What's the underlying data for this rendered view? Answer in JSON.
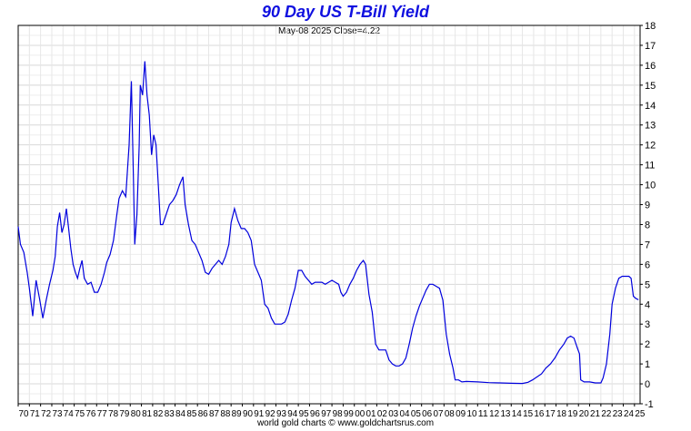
{
  "chart_data": {
    "type": "line",
    "title": "90 Day US T-Bill Yield",
    "subtitle": "May-08  2025   Close=4.22",
    "footer": "world gold charts © www.goldchartsrus.com",
    "ylim": [
      -1,
      18
    ],
    "y_ticks": [
      "-1",
      "0",
      "1",
      "2",
      "3",
      "4",
      "5",
      "6",
      "7",
      "8",
      "9",
      "10",
      "11",
      "12",
      "13",
      "14",
      "15",
      "16",
      "17",
      "18"
    ],
    "x_ticks": [
      "70",
      "71",
      "72",
      "73",
      "74",
      "75",
      "76",
      "77",
      "78",
      "79",
      "80",
      "81",
      "82",
      "83",
      "84",
      "85",
      "86",
      "87",
      "88",
      "89",
      "90",
      "91",
      "92",
      "93",
      "94",
      "95",
      "96",
      "97",
      "98",
      "99",
      "00",
      "01",
      "02",
      "03",
      "04",
      "05",
      "06",
      "07",
      "08",
      "09",
      "10",
      "11",
      "12",
      "13",
      "14",
      "15",
      "16",
      "17",
      "18",
      "19",
      "20",
      "21",
      "22",
      "23",
      "24",
      "25"
    ],
    "grid": true,
    "line_color": "#0000dd",
    "series": [
      {
        "x": [
          1970.0,
          1970.2,
          1970.5,
          1970.8,
          1971.0,
          1971.3,
          1971.6,
          1971.9,
          1972.2,
          1972.5,
          1972.8,
          1973.1,
          1973.3,
          1973.5,
          1973.7,
          1973.9,
          1974.1,
          1974.3,
          1974.5,
          1974.7,
          1974.9,
          1975.1,
          1975.3,
          1975.5,
          1975.7,
          1975.9,
          1976.2,
          1976.5,
          1976.8,
          1977.1,
          1977.4,
          1977.7,
          1977.9,
          1978.2,
          1978.5,
          1978.8,
          1979.0,
          1979.3,
          1979.6,
          1979.9,
          1980.1,
          1980.3,
          1980.4,
          1980.6,
          1980.8,
          1980.9,
          1981.1,
          1981.3,
          1981.5,
          1981.7,
          1981.9,
          1982.1,
          1982.3,
          1982.5,
          1982.7,
          1982.9,
          1983.2,
          1983.5,
          1983.8,
          1984.1,
          1984.4,
          1984.7,
          1984.9,
          1985.2,
          1985.5,
          1985.8,
          1986.1,
          1986.4,
          1986.7,
          1987.0,
          1987.3,
          1987.6,
          1987.9,
          1988.2,
          1988.5,
          1988.8,
          1989.0,
          1989.3,
          1989.6,
          1989.9,
          1990.2,
          1990.5,
          1990.8,
          1991.1,
          1991.4,
          1991.7,
          1992.0,
          1992.3,
          1992.6,
          1992.9,
          1993.2,
          1993.5,
          1993.8,
          1994.1,
          1994.4,
          1994.7,
          1995.0,
          1995.3,
          1995.6,
          1995.9,
          1996.2,
          1996.5,
          1996.8,
          1997.1,
          1997.4,
          1997.7,
          1998.0,
          1998.3,
          1998.6,
          1998.8,
          1999.0,
          1999.3,
          1999.6,
          1999.9,
          2000.2,
          2000.5,
          2000.8,
          2001.0,
          2001.3,
          2001.6,
          2001.9,
          2002.2,
          2002.5,
          2002.8,
          2003.1,
          2003.4,
          2003.7,
          2004.0,
          2004.3,
          2004.6,
          2004.9,
          2005.2,
          2005.5,
          2005.8,
          2006.1,
          2006.4,
          2006.7,
          2007.0,
          2007.3,
          2007.6,
          2007.9,
          2008.2,
          2008.5,
          2008.8,
          2009.0,
          2009.3,
          2009.6,
          2010.0,
          2011.0,
          2012.0,
          2013.0,
          2014.0,
          2015.0,
          2015.5,
          2015.9,
          2016.3,
          2016.7,
          2017.1,
          2017.5,
          2017.9,
          2018.3,
          2018.7,
          2019.0,
          2019.3,
          2019.6,
          2019.9,
          2020.1,
          2020.2,
          2020.5,
          2021.0,
          2021.5,
          2022.0,
          2022.2,
          2022.5,
          2022.8,
          2023.0,
          2023.3,
          2023.6,
          2023.9,
          2024.2,
          2024.5,
          2024.7,
          2024.9,
          2025.1,
          2025.35
        ],
        "y": [
          7.9,
          7.0,
          6.6,
          5.6,
          4.8,
          3.4,
          5.2,
          4.3,
          3.3,
          4.2,
          5.0,
          5.7,
          6.4,
          7.9,
          8.6,
          7.6,
          8.0,
          8.8,
          7.8,
          6.8,
          6.0,
          5.6,
          5.3,
          5.8,
          6.2,
          5.3,
          5.0,
          5.1,
          4.6,
          4.6,
          5.0,
          5.6,
          6.1,
          6.5,
          7.2,
          8.5,
          9.3,
          9.7,
          9.4,
          12.0,
          15.2,
          10.0,
          7.0,
          8.5,
          12.0,
          15.0,
          14.5,
          16.2,
          14.5,
          13.5,
          11.5,
          12.5,
          12.0,
          10.0,
          8.0,
          8.0,
          8.5,
          9.0,
          9.2,
          9.5,
          10.0,
          10.4,
          9.0,
          8.0,
          7.2,
          7.0,
          6.6,
          6.2,
          5.6,
          5.5,
          5.8,
          6.0,
          6.2,
          6.0,
          6.4,
          7.0,
          8.1,
          8.8,
          8.2,
          7.8,
          7.8,
          7.6,
          7.2,
          6.0,
          5.6,
          5.2,
          4.0,
          3.8,
          3.3,
          3.0,
          3.0,
          3.0,
          3.1,
          3.5,
          4.2,
          4.8,
          5.7,
          5.7,
          5.4,
          5.2,
          5.0,
          5.1,
          5.1,
          5.1,
          5.0,
          5.1,
          5.2,
          5.1,
          5.0,
          4.6,
          4.4,
          4.6,
          5.0,
          5.3,
          5.7,
          6.0,
          6.2,
          6.0,
          4.5,
          3.6,
          2.0,
          1.7,
          1.7,
          1.7,
          1.2,
          1.0,
          0.9,
          0.9,
          1.0,
          1.3,
          2.0,
          2.8,
          3.4,
          3.9,
          4.3,
          4.7,
          5.0,
          5.0,
          4.9,
          4.8,
          4.2,
          2.5,
          1.5,
          0.8,
          0.2,
          0.2,
          0.1,
          0.12,
          0.1,
          0.06,
          0.05,
          0.03,
          0.02,
          0.08,
          0.2,
          0.35,
          0.5,
          0.8,
          1.0,
          1.3,
          1.7,
          2.0,
          2.3,
          2.4,
          2.3,
          1.8,
          1.5,
          0.2,
          0.1,
          0.1,
          0.05,
          0.05,
          0.3,
          1.0,
          2.5,
          4.0,
          4.8,
          5.3,
          5.4,
          5.4,
          5.4,
          5.3,
          4.4,
          4.3,
          4.22
        ]
      }
    ]
  }
}
